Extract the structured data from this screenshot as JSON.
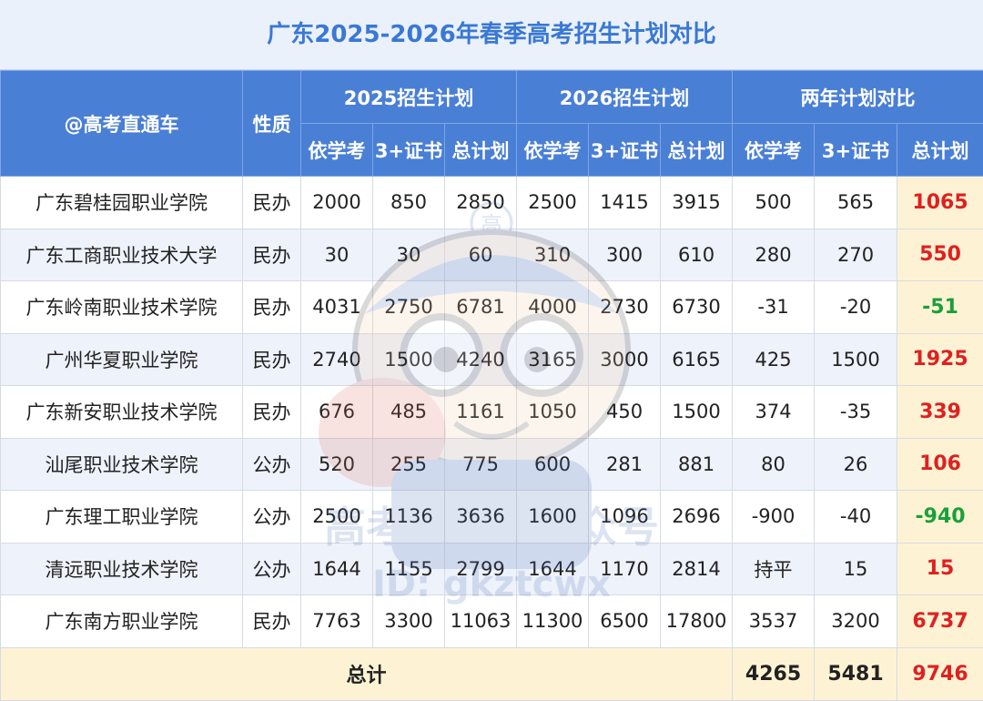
{
  "title": "广东2025-2026年春季高考招生计划对比",
  "header": {
    "col_school": "@高考直通车",
    "col_type": "性质",
    "group_2025": "2025招生计划",
    "group_2026": "2026招生计划",
    "group_compare": "两年计划对比",
    "sub_a": "依学考",
    "sub_b": "3+证书",
    "sub_c": "总计划"
  },
  "rows": [
    {
      "school": "广东碧桂园职业学院",
      "type": "民办",
      "y25_a": "2000",
      "y25_b": "850",
      "y25_c": "2850",
      "y26_a": "2500",
      "y26_b": "1415",
      "y26_c": "3915",
      "d_a": "500",
      "d_b": "565",
      "d_c": "1065",
      "sign": "pos"
    },
    {
      "school": "广东工商职业技术大学",
      "type": "民办",
      "y25_a": "30",
      "y25_b": "30",
      "y25_c": "60",
      "y26_a": "310",
      "y26_b": "300",
      "y26_c": "610",
      "d_a": "280",
      "d_b": "270",
      "d_c": "550",
      "sign": "pos"
    },
    {
      "school": "广东岭南职业技术学院",
      "type": "民办",
      "y25_a": "4031",
      "y25_b": "2750",
      "y25_c": "6781",
      "y26_a": "4000",
      "y26_b": "2730",
      "y26_c": "6730",
      "d_a": "-31",
      "d_b": "-20",
      "d_c": "-51",
      "sign": "neg"
    },
    {
      "school": "广州华夏职业学院",
      "type": "民办",
      "y25_a": "2740",
      "y25_b": "1500",
      "y25_c": "4240",
      "y26_a": "3165",
      "y26_b": "3000",
      "y26_c": "6165",
      "d_a": "425",
      "d_b": "1500",
      "d_c": "1925",
      "sign": "pos"
    },
    {
      "school": "广东新安职业技术学院",
      "type": "民办",
      "y25_a": "676",
      "y25_b": "485",
      "y25_c": "1161",
      "y26_a": "1050",
      "y26_b": "450",
      "y26_c": "1500",
      "d_a": "374",
      "d_b": "-35",
      "d_c": "339",
      "sign": "pos"
    },
    {
      "school": "汕尾职业技术学院",
      "type": "公办",
      "y25_a": "520",
      "y25_b": "255",
      "y25_c": "775",
      "y26_a": "600",
      "y26_b": "281",
      "y26_c": "881",
      "d_a": "80",
      "d_b": "26",
      "d_c": "106",
      "sign": "pos"
    },
    {
      "school": "广东理工职业学院",
      "type": "公办",
      "y25_a": "2500",
      "y25_b": "1136",
      "y25_c": "3636",
      "y26_a": "1600",
      "y26_b": "1096",
      "y26_c": "2696",
      "d_a": "-900",
      "d_b": "-40",
      "d_c": "-940",
      "sign": "neg"
    },
    {
      "school": "清远职业技术学院",
      "type": "公办",
      "y25_a": "1644",
      "y25_b": "1155",
      "y25_c": "2799",
      "y26_a": "1644",
      "y26_b": "1170",
      "y26_c": "2814",
      "d_a": "持平",
      "d_b": "15",
      "d_c": "15",
      "sign": "pos"
    },
    {
      "school": "广东南方职业学院",
      "type": "民办",
      "y25_a": "7763",
      "y25_b": "3300",
      "y25_c": "11063",
      "y26_a": "11300",
      "y26_b": "6500",
      "y26_c": "17800",
      "d_a": "3537",
      "d_b": "3200",
      "d_c": "6737",
      "sign": "pos"
    }
  ],
  "total": {
    "label": "总计",
    "d_a": "4265",
    "d_b": "5481",
    "d_c": "9746"
  },
  "watermark": {
    "line1": "高考直通车公众号",
    "line2": "ID: gkztcwx",
    "badge": "高"
  },
  "colors": {
    "header_bg": "#4a7fd6",
    "title_text": "#3a78d4",
    "positive": "#e02020",
    "negative": "#1aa03a",
    "total_bg": "#fdf3d4"
  }
}
